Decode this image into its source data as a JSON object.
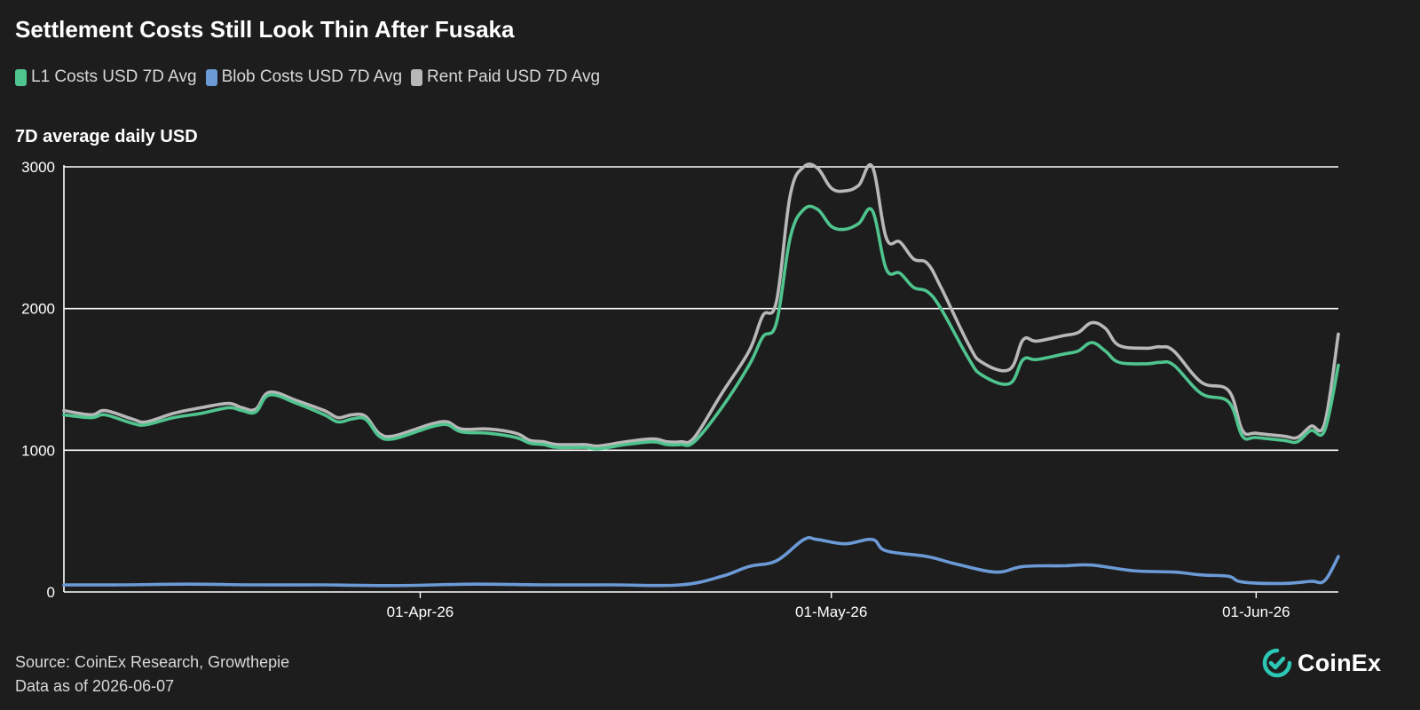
{
  "chart_data": {
    "type": "line",
    "title": "Settlement Costs Still Look Thin After Fusaka",
    "ylabel": "7D average daily USD",
    "ylim": [
      0,
      3000
    ],
    "yticks": [
      0,
      1000,
      2000,
      3000
    ],
    "x_start": "2026-03-06",
    "x_end": "2026-06-07",
    "xticks": [
      {
        "label": "01-Apr-26",
        "date": "2026-04-01"
      },
      {
        "label": "01-May-26",
        "date": "2026-05-01"
      },
      {
        "label": "01-Jun-26",
        "date": "2026-06-01"
      }
    ],
    "grid": true,
    "legend_position": "top-left",
    "series": [
      {
        "name": "L1 Costs USD 7D Avg",
        "color": "#4fc48e",
        "points": [
          [
            "2026-03-06",
            1250
          ],
          [
            "2026-03-08",
            1230
          ],
          [
            "2026-03-09",
            1250
          ],
          [
            "2026-03-11",
            1190
          ],
          [
            "2026-03-12",
            1180
          ],
          [
            "2026-03-14",
            1230
          ],
          [
            "2026-03-16",
            1260
          ],
          [
            "2026-03-18",
            1300
          ],
          [
            "2026-03-19",
            1280
          ],
          [
            "2026-03-20",
            1270
          ],
          [
            "2026-03-21",
            1390
          ],
          [
            "2026-03-23",
            1330
          ],
          [
            "2026-03-25",
            1250
          ],
          [
            "2026-03-26",
            1200
          ],
          [
            "2026-03-27",
            1220
          ],
          [
            "2026-03-28",
            1220
          ],
          [
            "2026-03-29",
            1100
          ],
          [
            "2026-03-30",
            1080
          ],
          [
            "2026-04-01",
            1140
          ],
          [
            "2026-04-02",
            1170
          ],
          [
            "2026-04-03",
            1180
          ],
          [
            "2026-04-04",
            1130
          ],
          [
            "2026-04-06",
            1120
          ],
          [
            "2026-04-08",
            1090
          ],
          [
            "2026-04-09",
            1050
          ],
          [
            "2026-04-10",
            1040
          ],
          [
            "2026-04-11",
            1020
          ],
          [
            "2026-04-13",
            1020
          ],
          [
            "2026-04-14",
            1010
          ],
          [
            "2026-04-16",
            1040
          ],
          [
            "2026-04-18",
            1060
          ],
          [
            "2026-04-19",
            1040
          ],
          [
            "2026-04-20",
            1040
          ],
          [
            "2026-04-21",
            1060
          ],
          [
            "2026-04-23",
            1300
          ],
          [
            "2026-04-25",
            1600
          ],
          [
            "2026-04-26",
            1800
          ],
          [
            "2026-04-27",
            1900
          ],
          [
            "2026-04-28",
            2500
          ],
          [
            "2026-04-29",
            2700
          ],
          [
            "2026-04-30",
            2700
          ],
          [
            "2026-05-01",
            2580
          ],
          [
            "2026-05-02",
            2560
          ],
          [
            "2026-05-03",
            2600
          ],
          [
            "2026-05-04",
            2690
          ],
          [
            "2026-05-05",
            2280
          ],
          [
            "2026-05-06",
            2250
          ],
          [
            "2026-05-07",
            2150
          ],
          [
            "2026-05-08",
            2120
          ],
          [
            "2026-05-09",
            2000
          ],
          [
            "2026-05-11",
            1650
          ],
          [
            "2026-05-12",
            1530
          ],
          [
            "2026-05-14",
            1470
          ],
          [
            "2026-05-15",
            1640
          ],
          [
            "2026-05-16",
            1640
          ],
          [
            "2026-05-18",
            1680
          ],
          [
            "2026-05-19",
            1700
          ],
          [
            "2026-05-20",
            1760
          ],
          [
            "2026-05-21",
            1700
          ],
          [
            "2026-05-22",
            1620
          ],
          [
            "2026-05-24",
            1610
          ],
          [
            "2026-05-25",
            1620
          ],
          [
            "2026-05-26",
            1600
          ],
          [
            "2026-05-28",
            1400
          ],
          [
            "2026-05-30",
            1340
          ],
          [
            "2026-05-31",
            1100
          ],
          [
            "2026-06-01",
            1090
          ],
          [
            "2026-06-03",
            1070
          ],
          [
            "2026-06-04",
            1060
          ],
          [
            "2026-06-05",
            1140
          ],
          [
            "2026-06-06",
            1140
          ],
          [
            "2026-06-07",
            1600
          ]
        ]
      },
      {
        "name": "Blob Costs USD 7D Avg",
        "color": "#6b9ad6",
        "points": [
          [
            "2026-03-06",
            50
          ],
          [
            "2026-03-10",
            50
          ],
          [
            "2026-03-15",
            55
          ],
          [
            "2026-03-20",
            50
          ],
          [
            "2026-03-25",
            50
          ],
          [
            "2026-03-30",
            45
          ],
          [
            "2026-04-05",
            55
          ],
          [
            "2026-04-10",
            50
          ],
          [
            "2026-04-15",
            50
          ],
          [
            "2026-04-20",
            50
          ],
          [
            "2026-04-23",
            110
          ],
          [
            "2026-04-25",
            180
          ],
          [
            "2026-04-27",
            220
          ],
          [
            "2026-04-29",
            370
          ],
          [
            "2026-04-30",
            370
          ],
          [
            "2026-05-02",
            340
          ],
          [
            "2026-05-04",
            370
          ],
          [
            "2026-05-05",
            290
          ],
          [
            "2026-05-08",
            250
          ],
          [
            "2026-05-10",
            200
          ],
          [
            "2026-05-13",
            140
          ],
          [
            "2026-05-15",
            180
          ],
          [
            "2026-05-18",
            185
          ],
          [
            "2026-05-20",
            190
          ],
          [
            "2026-05-23",
            150
          ],
          [
            "2026-05-26",
            140
          ],
          [
            "2026-05-28",
            120
          ],
          [
            "2026-05-30",
            110
          ],
          [
            "2026-05-31",
            70
          ],
          [
            "2026-06-03",
            60
          ],
          [
            "2026-06-05",
            75
          ],
          [
            "2026-06-06",
            80
          ],
          [
            "2026-06-07",
            250
          ]
        ]
      },
      {
        "name": "Rent Paid USD 7D Avg",
        "color": "#b8b8b8",
        "points": [
          [
            "2026-03-06",
            1280
          ],
          [
            "2026-03-08",
            1250
          ],
          [
            "2026-03-09",
            1280
          ],
          [
            "2026-03-11",
            1220
          ],
          [
            "2026-03-12",
            1200
          ],
          [
            "2026-03-14",
            1260
          ],
          [
            "2026-03-16",
            1300
          ],
          [
            "2026-03-18",
            1330
          ],
          [
            "2026-03-19",
            1300
          ],
          [
            "2026-03-20",
            1290
          ],
          [
            "2026-03-21",
            1410
          ],
          [
            "2026-03-23",
            1350
          ],
          [
            "2026-03-25",
            1280
          ],
          [
            "2026-03-26",
            1230
          ],
          [
            "2026-03-27",
            1250
          ],
          [
            "2026-03-28",
            1240
          ],
          [
            "2026-03-29",
            1120
          ],
          [
            "2026-03-30",
            1100
          ],
          [
            "2026-04-01",
            1160
          ],
          [
            "2026-04-02",
            1190
          ],
          [
            "2026-04-03",
            1200
          ],
          [
            "2026-04-04",
            1150
          ],
          [
            "2026-04-06",
            1150
          ],
          [
            "2026-04-08",
            1120
          ],
          [
            "2026-04-09",
            1070
          ],
          [
            "2026-04-10",
            1060
          ],
          [
            "2026-04-11",
            1040
          ],
          [
            "2026-04-13",
            1040
          ],
          [
            "2026-04-14",
            1030
          ],
          [
            "2026-04-16",
            1060
          ],
          [
            "2026-04-18",
            1080
          ],
          [
            "2026-04-19",
            1060
          ],
          [
            "2026-04-20",
            1060
          ],
          [
            "2026-04-21",
            1090
          ],
          [
            "2026-04-23",
            1400
          ],
          [
            "2026-04-25",
            1700
          ],
          [
            "2026-04-26",
            1950
          ],
          [
            "2026-04-27",
            2050
          ],
          [
            "2026-04-28",
            2800
          ],
          [
            "2026-04-29",
            3000
          ],
          [
            "2026-04-30",
            2990
          ],
          [
            "2026-05-01",
            2850
          ],
          [
            "2026-05-02",
            2830
          ],
          [
            "2026-05-03",
            2870
          ],
          [
            "2026-05-04",
            3000
          ],
          [
            "2026-05-05",
            2500
          ],
          [
            "2026-05-06",
            2470
          ],
          [
            "2026-05-07",
            2350
          ],
          [
            "2026-05-08",
            2320
          ],
          [
            "2026-05-09",
            2150
          ],
          [
            "2026-05-11",
            1750
          ],
          [
            "2026-05-12",
            1620
          ],
          [
            "2026-05-14",
            1570
          ],
          [
            "2026-05-15",
            1780
          ],
          [
            "2026-05-16",
            1770
          ],
          [
            "2026-05-18",
            1810
          ],
          [
            "2026-05-19",
            1830
          ],
          [
            "2026-05-20",
            1900
          ],
          [
            "2026-05-21",
            1860
          ],
          [
            "2026-05-22",
            1740
          ],
          [
            "2026-05-24",
            1720
          ],
          [
            "2026-05-25",
            1730
          ],
          [
            "2026-05-26",
            1700
          ],
          [
            "2026-05-28",
            1480
          ],
          [
            "2026-05-30",
            1420
          ],
          [
            "2026-05-31",
            1140
          ],
          [
            "2026-06-01",
            1120
          ],
          [
            "2026-06-03",
            1100
          ],
          [
            "2026-06-04",
            1090
          ],
          [
            "2026-06-05",
            1170
          ],
          [
            "2026-06-06",
            1190
          ],
          [
            "2026-06-07",
            1820
          ]
        ]
      }
    ]
  },
  "footer": {
    "source": "Source: CoinEx Research, Growthepie",
    "data_as_of": "Data as of 2026-06-07"
  },
  "logo": {
    "text": "CoinEx",
    "color": "#2dc8b5"
  }
}
